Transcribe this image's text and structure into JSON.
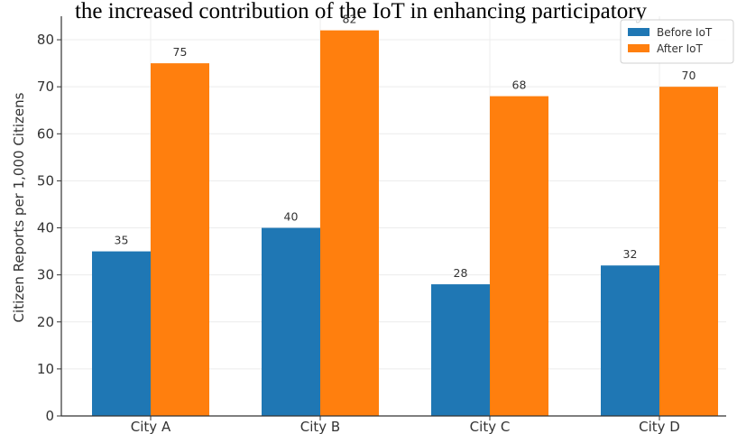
{
  "chart_data": {
    "type": "bar",
    "title": "the increased contribution of the IoT in enhancing participatory",
    "xlabel": "",
    "ylabel": "Citizen Reports per 1,000 Citizens",
    "categories": [
      "City A",
      "City B",
      "City C",
      "City D"
    ],
    "series": [
      {
        "name": "Before IoT",
        "values": [
          35,
          40,
          28,
          32
        ],
        "color": "#1f77b4"
      },
      {
        "name": "After IoT",
        "values": [
          75,
          82,
          68,
          70
        ],
        "color": "#ff7f0e"
      }
    ],
    "ylim": [
      0,
      85
    ],
    "yticks": [
      0,
      10,
      20,
      30,
      40,
      50,
      60,
      70,
      80
    ],
    "grid": true,
    "legend_position": "top-right",
    "data_labels": true
  }
}
